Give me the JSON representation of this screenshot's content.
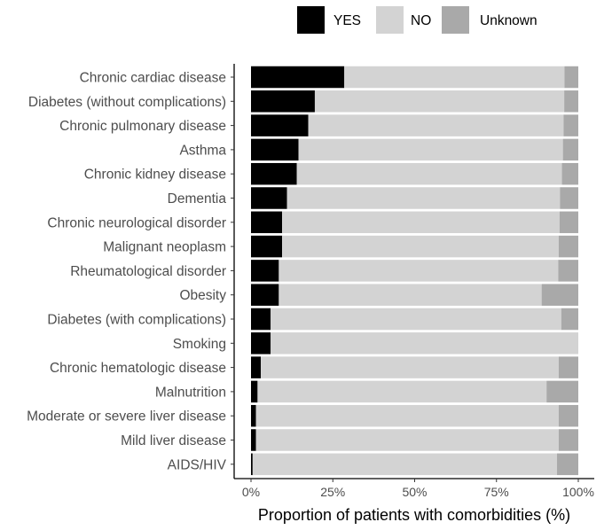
{
  "chart_data": {
    "type": "bar",
    "orientation": "horizontal",
    "stacked": true,
    "xlabel": "Proportion of patients with comorbidities (%)",
    "ylabel": "",
    "xlim": [
      0,
      100
    ],
    "x_ticks": [
      0,
      25,
      50,
      75,
      100
    ],
    "x_tick_labels": [
      "0%",
      "25%",
      "50%",
      "75%",
      "100%"
    ],
    "legend_position": "top",
    "categories": [
      "Chronic cardiac disease",
      "Diabetes (without complications)",
      "Chronic pulmonary disease",
      "Asthma",
      "Chronic kidney disease",
      "Dementia",
      "Chronic neurological disorder",
      "Malignant neoplasm",
      "Rheumatological disorder",
      "Obesity",
      "Diabetes (with complications)",
      "Smoking",
      "Chronic hematologic disease",
      "Malnutrition",
      "Moderate or severe liver disease",
      "Mild liver disease",
      "AIDS/HIV"
    ],
    "series": [
      {
        "name": "YES",
        "color": "#000000",
        "values": [
          28.5,
          19.5,
          17.5,
          14.5,
          14,
          11,
          9.5,
          9.5,
          8.5,
          8.5,
          6.0,
          6.0,
          3.0,
          2.0,
          1.5,
          1.5,
          0.5
        ]
      },
      {
        "name": "NO",
        "color": "#d3d3d3",
        "values": [
          67.3,
          76.2,
          78,
          80.8,
          81,
          83.4,
          84.8,
          84.5,
          85.4,
          80.3,
          88.8,
          94.0,
          91.0,
          88.3,
          92.5,
          92.5,
          93.0
        ]
      },
      {
        "name": "Unknown",
        "color": "#a9a9a9",
        "values": [
          4.2,
          4.3,
          4.5,
          4.7,
          5,
          5.6,
          5.7,
          6.0,
          6.1,
          11.2,
          5.2,
          0,
          6.0,
          9.7,
          6.0,
          6.0,
          6.5
        ]
      }
    ]
  }
}
